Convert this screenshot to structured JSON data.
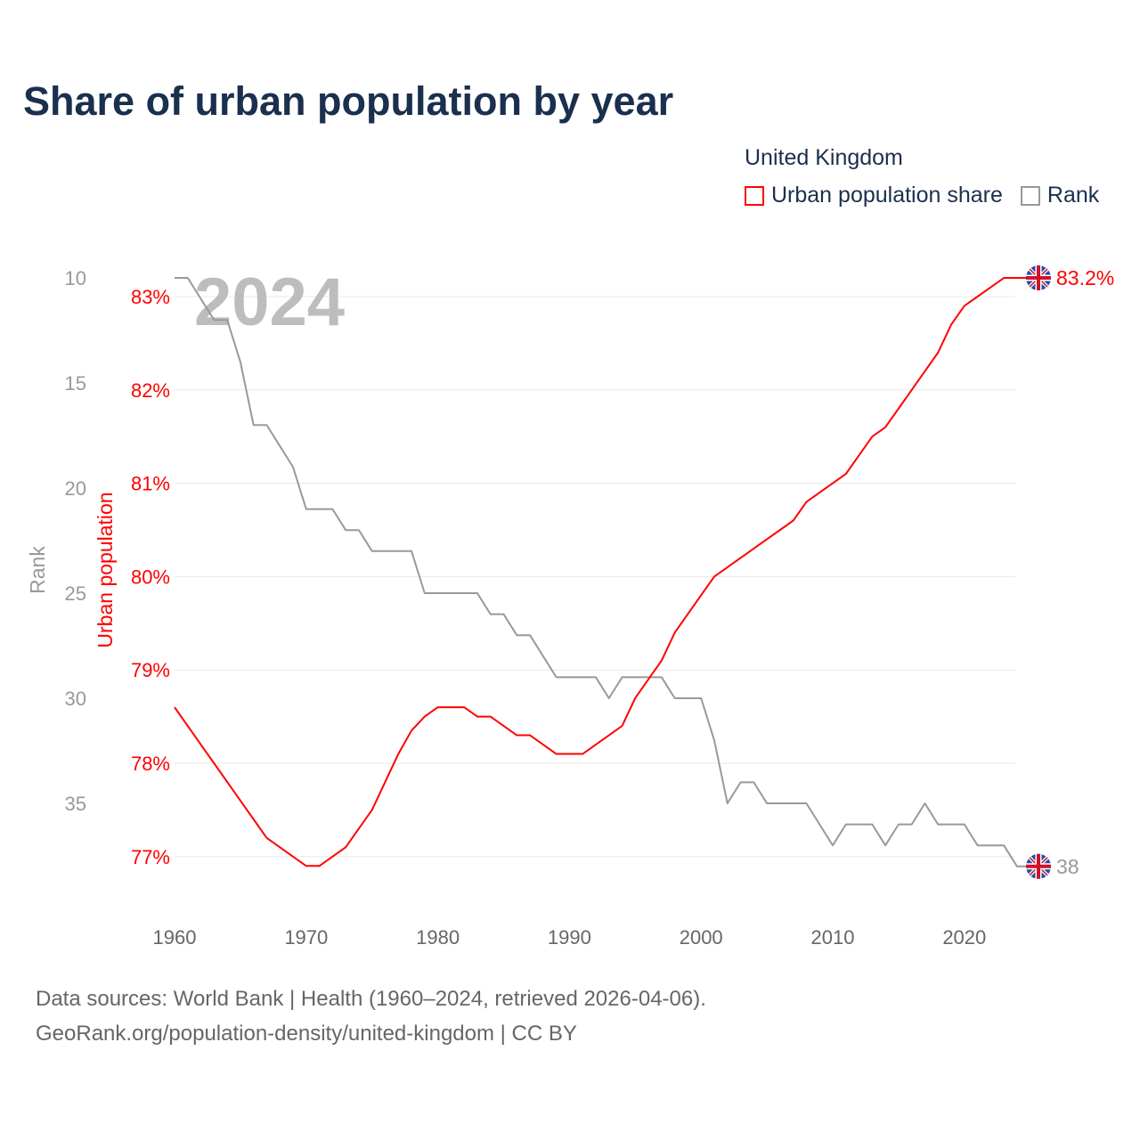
{
  "title": "Share of urban population by year",
  "legend": {
    "title": "United Kingdom",
    "items": [
      {
        "label": "Urban population share",
        "color": "#ff0000"
      },
      {
        "label": "Rank",
        "color": "#999999"
      }
    ]
  },
  "footer": {
    "line1": "Data sources: World Bank | Health (1960–2024, retrieved 2026-04-06).",
    "line2": "GeoRank.org/population-density/united-kingdom | CC BY"
  },
  "chart_data": {
    "type": "line",
    "title": "Share of urban population by year",
    "year_label": "2024",
    "xlabel": "",
    "ylabel_left_outer": "Rank",
    "ylabel_left_inner": "Urban population",
    "xlim": [
      1960,
      2024
    ],
    "x_ticks": [
      "1960",
      "1970",
      "1980",
      "1990",
      "2000",
      "2010",
      "2020"
    ],
    "urban_ylim": [
      76.5,
      83.2
    ],
    "urban_ticks": [
      "83%",
      "82%",
      "81%",
      "80%",
      "79%",
      "78%",
      "77%"
    ],
    "rank_ticks": [
      "10",
      "15",
      "20",
      "25",
      "30",
      "35"
    ],
    "rank_ylim": [
      10,
      38
    ],
    "grid": true,
    "end_labels": {
      "urban": "83.2%",
      "rank": "38"
    },
    "x": [
      1960,
      1961,
      1962,
      1963,
      1964,
      1965,
      1966,
      1967,
      1968,
      1969,
      1970,
      1971,
      1972,
      1973,
      1974,
      1975,
      1976,
      1977,
      1978,
      1979,
      1980,
      1981,
      1982,
      1983,
      1984,
      1985,
      1986,
      1987,
      1988,
      1989,
      1990,
      1991,
      1992,
      1993,
      1994,
      1995,
      1996,
      1997,
      1998,
      1999,
      2000,
      2001,
      2002,
      2003,
      2004,
      2005,
      2006,
      2007,
      2008,
      2009,
      2010,
      2011,
      2012,
      2013,
      2014,
      2015,
      2016,
      2017,
      2018,
      2019,
      2020,
      2021,
      2022,
      2023,
      2024
    ],
    "series": [
      {
        "name": "Urban population share",
        "unit": "%",
        "color": "#ff0000",
        "values": [
          78.6,
          78.4,
          78.2,
          78.0,
          77.8,
          77.6,
          77.4,
          77.2,
          77.1,
          77.0,
          76.9,
          76.9,
          77.0,
          77.1,
          77.3,
          77.5,
          77.8,
          78.1,
          78.35,
          78.5,
          78.6,
          78.6,
          78.6,
          78.5,
          78.5,
          78.4,
          78.3,
          78.3,
          78.2,
          78.1,
          78.1,
          78.1,
          78.2,
          78.3,
          78.4,
          78.7,
          78.9,
          79.1,
          79.4,
          79.6,
          79.8,
          80.0,
          80.1,
          80.2,
          80.3,
          80.4,
          80.5,
          80.6,
          80.8,
          80.9,
          81.0,
          81.1,
          81.3,
          81.5,
          81.6,
          81.8,
          82.0,
          82.2,
          82.4,
          82.7,
          82.9,
          83.0,
          83.1,
          83.2,
          83.2
        ]
      },
      {
        "name": "Rank",
        "color": "#999999",
        "values": [
          10,
          10,
          11,
          12,
          12,
          14,
          17,
          17,
          18,
          19,
          21,
          21,
          21,
          22,
          22,
          23,
          23,
          23,
          23,
          25,
          25,
          25,
          25,
          25,
          26,
          26,
          27,
          27,
          28,
          29,
          29,
          29,
          29,
          30,
          29,
          29,
          29,
          29,
          30,
          30,
          30,
          32,
          35,
          34,
          34,
          35,
          35,
          35,
          35,
          36,
          37,
          36,
          36,
          36,
          37,
          36,
          36,
          35,
          36,
          36,
          36,
          37,
          37,
          37,
          38
        ]
      }
    ]
  }
}
